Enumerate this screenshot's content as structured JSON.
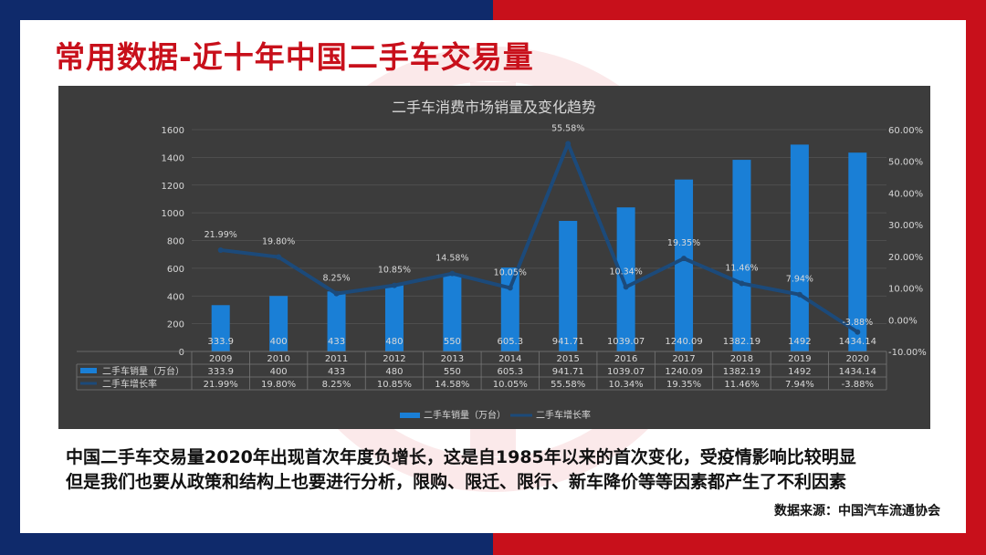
{
  "colors": {
    "bg_left": "#0f2a6b",
    "bg_right": "#c8101b",
    "title": "#c8101b",
    "bar": "#1a7fd6",
    "line": "#1c4a7a",
    "chart_bg": "#3c3c3c"
  },
  "slide": {
    "title": "常用数据-近十年中国二手车交易量",
    "description_line1": "中国二手车交易量2020年出现首次年度负增长，这是自1985年以来的首次变化，受疫情影响比较明显",
    "description_line2": "但是我们也要从政策和结构上也要进行分析，限购、限迁、限行、新车降价等等因素都产生了不利因素",
    "source": "数据来源：中国汽车流通协会"
  },
  "chart_data": {
    "type": "bar",
    "title": "二手车消费市场销量及变化趋势",
    "categories": [
      "2009",
      "2010",
      "2011",
      "2012",
      "2013",
      "2014",
      "2015",
      "2016",
      "2017",
      "2018",
      "2019",
      "2020"
    ],
    "series": [
      {
        "name": "二手车销量（万台）",
        "type": "bar",
        "axis": "left",
        "values": [
          333.9,
          400,
          433,
          480,
          550,
          605.3,
          941.71,
          1039.07,
          1240.09,
          1382.19,
          1492,
          1434.14
        ],
        "labels": [
          "333.9",
          "400",
          "433",
          "480",
          "550",
          "605.3",
          "941.71",
          "1039.07",
          "1240.09",
          "1382.19",
          "1492",
          "1434.14"
        ]
      },
      {
        "name": "二手车增长率",
        "type": "line",
        "axis": "right",
        "values": [
          21.99,
          19.8,
          8.25,
          10.85,
          14.58,
          10.05,
          55.58,
          10.34,
          19.35,
          11.46,
          7.94,
          -3.88
        ],
        "labels": [
          "21.99%",
          "19.80%",
          "8.25%",
          "10.85%",
          "14.58%",
          "10.05%",
          "55.58%",
          "10.34%",
          "19.35%",
          "11.46%",
          "7.94%",
          "-3.88%"
        ]
      }
    ],
    "y_left": {
      "min": 0,
      "max": 1600,
      "ticks": [
        "0",
        "200",
        "400",
        "600",
        "800",
        "1000",
        "1200",
        "1400",
        "1600"
      ]
    },
    "y_right": {
      "min": -10,
      "max": 60,
      "ticks": [
        "-10.00%",
        "0.00%",
        "10.00%",
        "20.00%",
        "30.00%",
        "40.00%",
        "50.00%",
        "60.00%"
      ]
    },
    "data_table": true,
    "grid": true,
    "legend_position": "bottom"
  }
}
